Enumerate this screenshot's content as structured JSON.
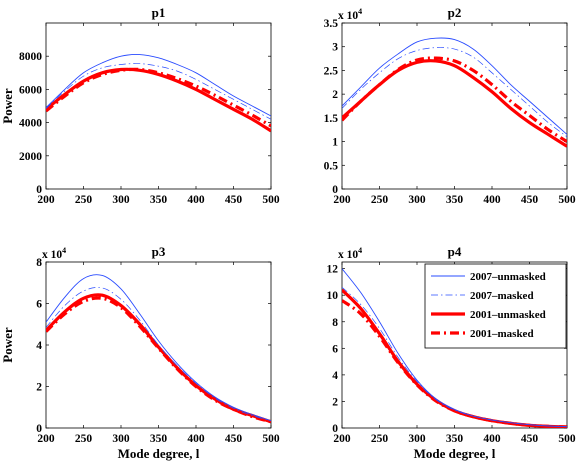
{
  "chart_data": [
    {
      "type": "line",
      "title": "p1",
      "xlabel": "",
      "ylabel": "Power",
      "xlim": [
        200,
        500
      ],
      "ylim": [
        0,
        10000
      ],
      "x_ticks": [
        "200",
        "250",
        "300",
        "350",
        "400",
        "450",
        "500"
      ],
      "y_ticks": [
        "0",
        "2000",
        "4000",
        "6000",
        "8000"
      ],
      "y_exponent": "",
      "x": [
        200,
        225,
        250,
        275,
        300,
        325,
        350,
        375,
        400,
        425,
        450,
        475,
        500
      ],
      "series": [
        {
          "name": "2007–unmasked",
          "values": [
            4900,
            6000,
            7000,
            7600,
            8000,
            8100,
            7900,
            7500,
            7000,
            6300,
            5600,
            5000,
            4400
          ]
        },
        {
          "name": "2007–masked",
          "values": [
            4850,
            5900,
            6800,
            7300,
            7500,
            7550,
            7400,
            7100,
            6600,
            6000,
            5400,
            4800,
            4200
          ]
        },
        {
          "name": "2001–unmasked",
          "values": [
            4800,
            5700,
            6500,
            7000,
            7200,
            7150,
            6900,
            6500,
            6000,
            5400,
            4800,
            4200,
            3500
          ]
        },
        {
          "name": "2001–masked",
          "values": [
            4700,
            5600,
            6400,
            6900,
            7150,
            7200,
            7000,
            6650,
            6200,
            5650,
            5050,
            4450,
            3800
          ]
        }
      ]
    },
    {
      "type": "line",
      "title": "p2",
      "xlabel": "",
      "ylabel": "",
      "xlim": [
        200,
        500
      ],
      "ylim": [
        0,
        3.5
      ],
      "x_ticks": [
        "200",
        "250",
        "300",
        "350",
        "400",
        "450",
        "500"
      ],
      "y_ticks": [
        "0",
        "0.5",
        "1",
        "1.5",
        "2",
        "2.5",
        "3",
        "3.5"
      ],
      "y_exponent": "x 10",
      "y_exponent_power": "4",
      "x": [
        200,
        225,
        250,
        275,
        300,
        325,
        350,
        375,
        400,
        425,
        450,
        475,
        500
      ],
      "series": [
        {
          "name": "2007–unmasked",
          "values": [
            1.75,
            2.15,
            2.55,
            2.85,
            3.1,
            3.18,
            3.15,
            2.95,
            2.6,
            2.2,
            1.85,
            1.5,
            1.15
          ]
        },
        {
          "name": "2007–masked",
          "values": [
            1.7,
            2.1,
            2.45,
            2.75,
            2.92,
            2.98,
            2.95,
            2.78,
            2.45,
            2.1,
            1.75,
            1.4,
            1.1
          ]
        },
        {
          "name": "2001–unmasked",
          "values": [
            1.5,
            1.85,
            2.2,
            2.5,
            2.67,
            2.7,
            2.6,
            2.35,
            2.05,
            1.7,
            1.4,
            1.15,
            0.9
          ]
        },
        {
          "name": "2001–masked",
          "values": [
            1.45,
            1.85,
            2.2,
            2.52,
            2.72,
            2.76,
            2.7,
            2.5,
            2.2,
            1.85,
            1.55,
            1.25,
            1.0
          ]
        }
      ]
    },
    {
      "type": "line",
      "title": "p3",
      "xlabel": "Mode degree, l",
      "ylabel": "Power",
      "xlim": [
        200,
        500
      ],
      "ylim": [
        0,
        8
      ],
      "x_ticks": [
        "200",
        "250",
        "300",
        "350",
        "400",
        "450",
        "500"
      ],
      "y_ticks": [
        "0",
        "2",
        "4",
        "6",
        "8"
      ],
      "y_exponent": "x 10",
      "y_exponent_power": "4",
      "x": [
        200,
        225,
        250,
        275,
        300,
        325,
        350,
        375,
        400,
        425,
        450,
        475,
        500
      ],
      "series": [
        {
          "name": "2007–unmasked",
          "values": [
            5.1,
            6.3,
            7.2,
            7.35,
            6.7,
            5.5,
            4.2,
            3.1,
            2.2,
            1.5,
            1.0,
            0.65,
            0.35
          ]
        },
        {
          "name": "2007–masked",
          "values": [
            4.85,
            5.9,
            6.6,
            6.75,
            6.2,
            5.2,
            4.0,
            3.0,
            2.15,
            1.45,
            0.95,
            0.6,
            0.35
          ]
        },
        {
          "name": "2001–unmasked",
          "values": [
            4.7,
            5.6,
            6.25,
            6.4,
            5.9,
            5.0,
            3.9,
            2.9,
            2.05,
            1.4,
            0.9,
            0.6,
            0.3
          ]
        },
        {
          "name": "2001–masked",
          "values": [
            4.65,
            5.5,
            6.1,
            6.25,
            5.8,
            4.9,
            3.85,
            2.85,
            2.0,
            1.35,
            0.9,
            0.55,
            0.3
          ]
        }
      ]
    },
    {
      "type": "line",
      "title": "p4",
      "xlabel": "Mode degree, l",
      "ylabel": "",
      "xlim": [
        200,
        500
      ],
      "ylim": [
        0,
        12.5
      ],
      "x_ticks": [
        "200",
        "250",
        "300",
        "350",
        "400",
        "450",
        "500"
      ],
      "y_ticks": [
        "0",
        "2",
        "4",
        "6",
        "8",
        "10",
        "12"
      ],
      "y_exponent": "x 10",
      "y_exponent_power": "4",
      "x": [
        200,
        225,
        250,
        275,
        300,
        325,
        350,
        375,
        400,
        425,
        450,
        475,
        500
      ],
      "series": [
        {
          "name": "2007–unmasked",
          "values": [
            12.0,
            10.2,
            8.0,
            5.6,
            3.6,
            2.2,
            1.4,
            0.9,
            0.6,
            0.4,
            0.25,
            0.15,
            0.1
          ]
        },
        {
          "name": "2007–masked",
          "values": [
            10.6,
            9.3,
            7.5,
            5.3,
            3.5,
            2.15,
            1.35,
            0.9,
            0.6,
            0.4,
            0.25,
            0.15,
            0.1
          ]
        },
        {
          "name": "2001–unmasked",
          "values": [
            10.4,
            9.0,
            7.1,
            5.0,
            3.3,
            2.1,
            1.3,
            0.85,
            0.55,
            0.35,
            0.2,
            0.12,
            0.08
          ]
        },
        {
          "name": "2001–masked",
          "values": [
            9.6,
            8.6,
            6.9,
            4.9,
            3.25,
            2.05,
            1.3,
            0.85,
            0.55,
            0.35,
            0.2,
            0.12,
            0.08
          ]
        }
      ],
      "legend": {
        "placement": "top-right",
        "entries": [
          "2007–unmasked",
          "2007–masked",
          "2001–unmasked",
          "2001–masked"
        ]
      }
    }
  ],
  "styles": {
    "2007–unmasked": {
      "color": "#2a4cff",
      "width": 0.9,
      "dash": ""
    },
    "2007–masked": {
      "color": "#2a4cff",
      "width": 0.7,
      "dash": "7,3,1.5,3"
    },
    "2001–unmasked": {
      "color": "#ff0000",
      "width": 3.2,
      "dash": ""
    },
    "2001–masked": {
      "color": "#ff0000",
      "width": 3.2,
      "dash": "9,4,2,4"
    }
  }
}
